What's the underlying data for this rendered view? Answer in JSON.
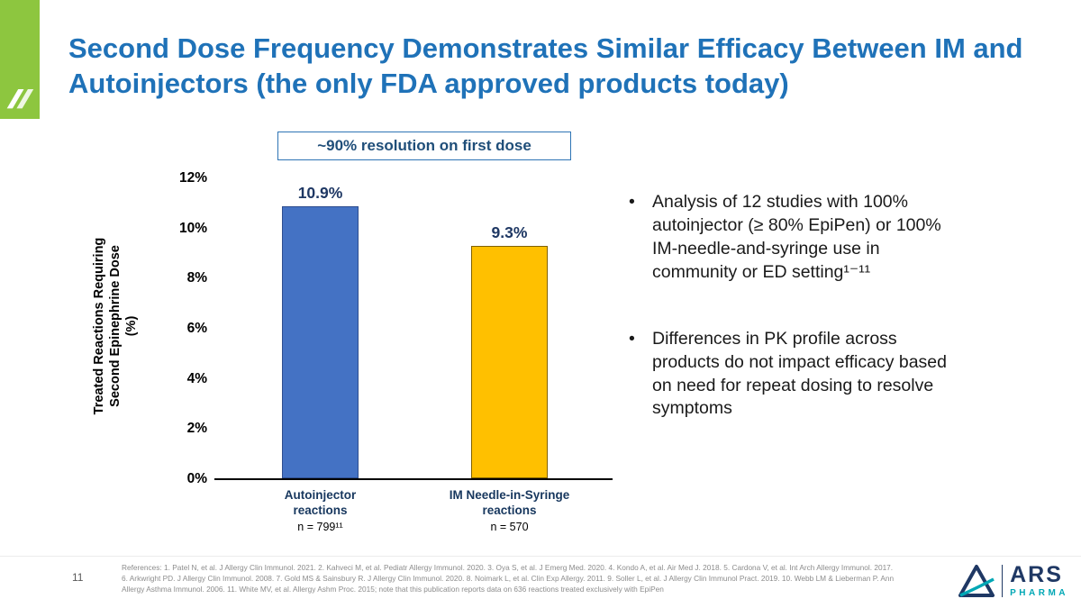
{
  "slide": {
    "title": "Second Dose Frequency Demonstrates Similar Efficacy Between IM and Autoinjectors (the only FDA approved products today)",
    "page_number": "11"
  },
  "chart_data": {
    "type": "bar",
    "title": "~90% resolution on first dose",
    "categories": [
      "Autoinjector reactions",
      "IM Needle-in-Syringe reactions"
    ],
    "display_categories": [
      "Autoinjector\nreactions",
      "IM Needle-in-Syringe\nreactions"
    ],
    "category_sublabels": [
      "n = 799¹¹",
      "n = 570"
    ],
    "values": [
      10.9,
      9.3
    ],
    "value_labels": [
      "10.9%",
      "9.3%"
    ],
    "bar_colors": [
      "#4472c4",
      "#ffc000"
    ],
    "bar_border_colors": [
      "#2e4e8f",
      "#806000"
    ],
    "ylabel": "Treated Reactions Requiring\nSecond Epinephrine Dose\n(%)",
    "ylim": [
      0,
      12
    ],
    "yticks": [
      "12%",
      "10%",
      "8%",
      "6%",
      "4%",
      "2%",
      "0%"
    ],
    "legend": "none",
    "grid": "off"
  },
  "bullets": [
    {
      "marker": "•",
      "text": "Analysis of 12 studies with 100% autoinjector (≥ 80% EpiPen) or 100% IM-needle-and-syringe use in community or ED setting¹⁻¹¹"
    },
    {
      "marker": "•",
      "text": "Differences in PK profile across products do not impact efficacy based on need for repeat dosing to resolve symptoms"
    }
  ],
  "footer": {
    "references": "References: 1. Patel N, et al. J Allergy Clin Immunol. 2021. 2. Kahveci M, et al. Pediatr Allergy Immunol. 2020. 3. Oya S, et al. J Emerg Med. 2020. 4. Kondo A, et al. Air Med J. 2018. 5. Cardona V, et al. Int Arch Allergy Immunol. 2017. 6. Arkwright PD. J Allergy Clin Immunol. 2008. 7. Gold MS & Sainsbury R. J Allergy Clin Immunol. 2020. 8. Noimark L, et al. Clin Exp Allergy. 2011.  9. Soller L, et al. J Allergy Clin Immunol Pract. 2019. 10. Webb LM & Lieberman P. Ann Allergy Asthma Immunol. 2006. 11. White MV, et al. Allergy Ashm Proc. 2015; note that this publication reports data on 636 reactions treated exclusively with EpiPen",
    "logo_name": "ARS",
    "logo_sub": "PHARMA"
  },
  "colors": {
    "title_blue": "#1f72b8",
    "annotation_blue": "#1f4e79",
    "value_navy": "#1f3864",
    "corner_green": "#8dc63f",
    "logo_navy": "#1f3864",
    "logo_teal": "#00a7b5"
  }
}
